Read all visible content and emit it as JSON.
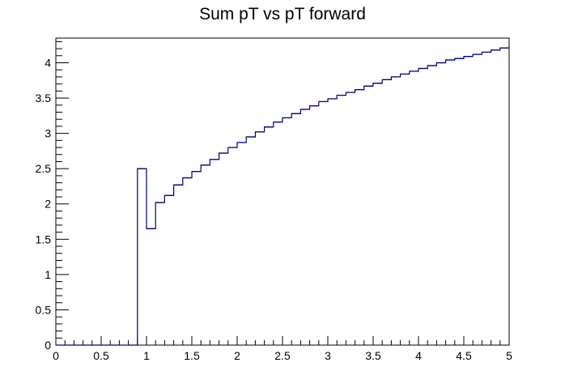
{
  "chart_data": {
    "type": "histogram",
    "title": "Sum pT vs pT forward",
    "xlim": [
      0,
      5
    ],
    "ylim": [
      0,
      4.35
    ],
    "grid": false,
    "bin_width": 0.1,
    "bin_edges_start": 0,
    "values": [
      0,
      0,
      0,
      0,
      0,
      0,
      0,
      0,
      0,
      2.5,
      1.65,
      2.02,
      2.12,
      2.27,
      2.37,
      2.46,
      2.55,
      2.63,
      2.72,
      2.8,
      2.87,
      2.95,
      3.02,
      3.09,
      3.16,
      3.22,
      3.28,
      3.34,
      3.39,
      3.45,
      3.49,
      3.54,
      3.58,
      3.62,
      3.67,
      3.71,
      3.76,
      3.8,
      3.84,
      3.88,
      3.92,
      3.96,
      4.0,
      4.04,
      4.06,
      4.09,
      4.12,
      4.15,
      4.18,
      4.21
    ],
    "x_ticks": [
      "0",
      "0.5",
      "1",
      "1.5",
      "2",
      "2.5",
      "3",
      "3.5",
      "4",
      "4.5",
      "5"
    ],
    "y_ticks": [
      "0",
      "0.5",
      "1",
      "1.5",
      "2",
      "2.5",
      "3",
      "3.5",
      "4"
    ],
    "line_color": "#000080",
    "axis_color": "#000000"
  }
}
